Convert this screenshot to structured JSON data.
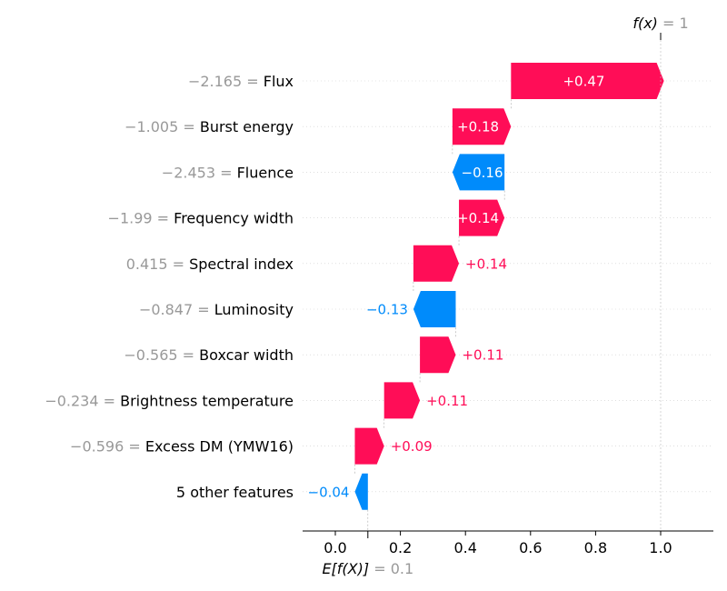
{
  "chart_data": {
    "type": "waterfall",
    "base_value": 0.1,
    "final_value": 1,
    "expected_label": "E[f(X)]",
    "expected_value_text": "= 0.1",
    "fx_label": "f(x)",
    "fx_value_text": "= 1",
    "xlim": [
      -0.1,
      1.16
    ],
    "xticks": [
      {
        "value": 0.0,
        "label": "0.0"
      },
      {
        "value": 0.2,
        "label": "0.2"
      },
      {
        "value": 0.4,
        "label": "0.4"
      },
      {
        "value": 0.6,
        "label": "0.6"
      },
      {
        "value": 0.8,
        "label": "0.8"
      },
      {
        "value": 1.0,
        "label": "1.0"
      }
    ],
    "features": [
      {
        "value_text": "−2.165 = ",
        "name": "Flux",
        "contribution": 0.47,
        "label": "+0.47",
        "label_inside": true
      },
      {
        "value_text": "−1.005 = ",
        "name": "Burst energy",
        "contribution": 0.18,
        "label": "+0.18",
        "label_inside": true
      },
      {
        "value_text": "−2.453 = ",
        "name": "Fluence",
        "contribution": -0.16,
        "label": "−0.16",
        "label_inside": true
      },
      {
        "value_text": "−1.99 = ",
        "name": "Frequency width",
        "contribution": 0.14,
        "label": "+0.14",
        "label_inside": true
      },
      {
        "value_text": "0.415 = ",
        "name": "Spectral index",
        "contribution": 0.14,
        "label": "+0.14",
        "label_inside": false
      },
      {
        "value_text": "−0.847 = ",
        "name": "Luminosity",
        "contribution": -0.13,
        "label": "−0.13",
        "label_inside": false
      },
      {
        "value_text": "−0.565 = ",
        "name": "Boxcar width",
        "contribution": 0.11,
        "label": "+0.11",
        "label_inside": false
      },
      {
        "value_text": "−0.234 = ",
        "name": "Brightness temperature",
        "contribution": 0.11,
        "label": "+0.11",
        "label_inside": false
      },
      {
        "value_text": "−0.596 = ",
        "name": "Excess DM (YMW16)",
        "contribution": 0.09,
        "label": "+0.09",
        "label_inside": false
      },
      {
        "value_text": "",
        "name": "5 other features",
        "contribution": -0.04,
        "label": "−0.04",
        "label_inside": false
      }
    ],
    "colors": {
      "positive": "#ff0d57",
      "negative": "#008bfb",
      "value_text": "#999999",
      "axis": "#000000"
    }
  }
}
